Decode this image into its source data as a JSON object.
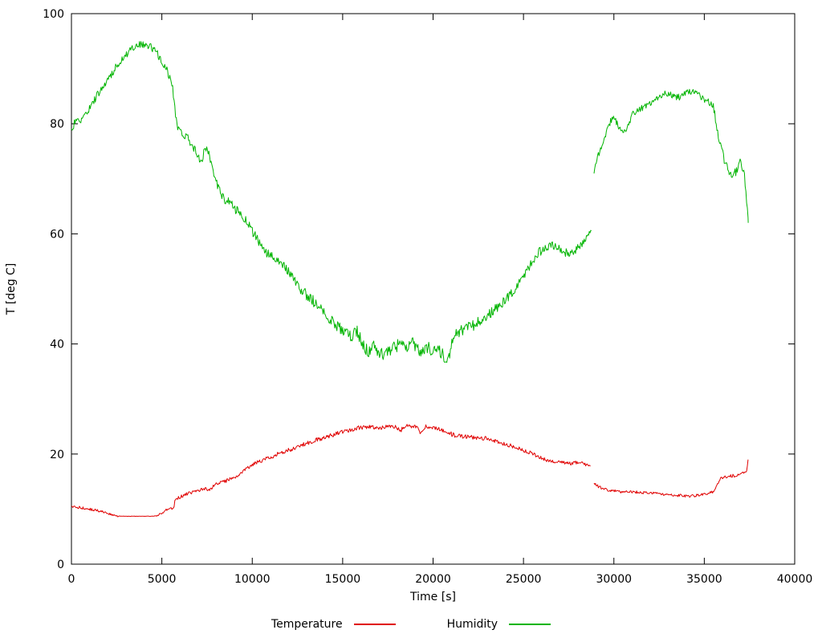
{
  "chart_data": {
    "type": "line",
    "title": "",
    "xlabel": "Time [s]",
    "ylabel": "T [deg C]",
    "xlim": [
      0,
      40000
    ],
    "ylim": [
      0,
      100
    ],
    "xticks": [
      0,
      5000,
      10000,
      15000,
      20000,
      25000,
      30000,
      35000,
      40000
    ],
    "yticks": [
      0,
      20,
      40,
      60,
      80,
      100
    ],
    "grid": false,
    "legend_position": "bottom-center",
    "frame": {
      "stroke": "#000000",
      "tick_length": 8,
      "ticks_mirrored": true
    },
    "series": [
      {
        "name": "Temperature",
        "color": "#e00000",
        "noise_keys": [
          [
            0,
            0.25
          ],
          [
            2500,
            0.2
          ],
          [
            2700,
            0.03
          ],
          [
            4500,
            0.03
          ],
          [
            4800,
            0.25
          ],
          [
            6000,
            0.3
          ],
          [
            15000,
            0.4
          ],
          [
            20000,
            0.4
          ],
          [
            28700,
            0.3
          ],
          [
            28900,
            0.25
          ],
          [
            35000,
            0.25
          ],
          [
            37420,
            0.3
          ]
        ],
        "segments": [
          [
            [
              0,
              10.5
            ],
            [
              400,
              10.3
            ],
            [
              800,
              10.1
            ],
            [
              1200,
              9.9
            ],
            [
              1600,
              9.6
            ],
            [
              2000,
              9.2
            ],
            [
              2300,
              9.0
            ],
            [
              2600,
              8.7
            ],
            [
              4600,
              8.7
            ],
            [
              4900,
              9.2
            ],
            [
              5200,
              9.7
            ],
            [
              5500,
              10.1
            ],
            [
              5650,
              10.3
            ],
            [
              5750,
              11.7
            ],
            [
              5900,
              12.0
            ],
            [
              6200,
              12.5
            ],
            [
              6600,
              13.0
            ],
            [
              7000,
              13.4
            ],
            [
              7400,
              13.7
            ],
            [
              7600,
              13.4
            ],
            [
              7900,
              14.3
            ],
            [
              8200,
              14.8
            ],
            [
              8600,
              15.2
            ],
            [
              9000,
              15.8
            ],
            [
              9400,
              16.6
            ],
            [
              9800,
              17.6
            ],
            [
              10200,
              18.4
            ],
            [
              10600,
              18.9
            ],
            [
              11000,
              19.4
            ],
            [
              11400,
              20.0
            ],
            [
              11800,
              20.5
            ],
            [
              12300,
              21.0
            ],
            [
              12800,
              21.7
            ],
            [
              13300,
              22.3
            ],
            [
              13800,
              22.8
            ],
            [
              14300,
              23.3
            ],
            [
              14800,
              23.9
            ],
            [
              15300,
              24.2
            ],
            [
              15800,
              24.7
            ],
            [
              16300,
              25.0
            ],
            [
              16800,
              24.8
            ],
            [
              17300,
              24.9
            ],
            [
              17800,
              25.1
            ],
            [
              18200,
              24.3
            ],
            [
              18500,
              25.0
            ],
            [
              19000,
              25.2
            ],
            [
              19300,
              24.0
            ],
            [
              19600,
              25.0
            ],
            [
              20000,
              24.8
            ],
            [
              20400,
              24.4
            ],
            [
              20800,
              23.9
            ],
            [
              21200,
              23.4
            ],
            [
              21600,
              23.2
            ],
            [
              22000,
              23.1
            ],
            [
              22500,
              23.0
            ],
            [
              23000,
              22.8
            ],
            [
              23500,
              22.3
            ],
            [
              24000,
              21.8
            ],
            [
              24500,
              21.3
            ],
            [
              25000,
              20.7
            ],
            [
              25400,
              20.2
            ],
            [
              25800,
              19.6
            ],
            [
              26100,
              19.1
            ],
            [
              26400,
              18.7
            ],
            [
              26800,
              18.5
            ],
            [
              27200,
              18.4
            ],
            [
              27600,
              18.3
            ],
            [
              28000,
              18.5
            ],
            [
              28400,
              18.2
            ],
            [
              28700,
              17.8
            ]
          ],
          [
            [
              28900,
              14.6
            ],
            [
              29200,
              14.0
            ],
            [
              29600,
              13.5
            ],
            [
              30000,
              13.3
            ],
            [
              30400,
              13.1
            ],
            [
              30800,
              13.2
            ],
            [
              31200,
              13.1
            ],
            [
              31600,
              13.0
            ],
            [
              32000,
              13.0
            ],
            [
              32400,
              12.8
            ],
            [
              32800,
              12.6
            ],
            [
              33200,
              12.5
            ],
            [
              33600,
              12.5
            ],
            [
              34000,
              12.4
            ],
            [
              34400,
              12.4
            ],
            [
              34800,
              12.6
            ],
            [
              35200,
              12.9
            ],
            [
              35500,
              13.2
            ],
            [
              35700,
              14.4
            ],
            [
              35900,
              15.5
            ],
            [
              36100,
              15.8
            ],
            [
              36400,
              16.0
            ],
            [
              36700,
              16.1
            ],
            [
              37000,
              16.3
            ],
            [
              37200,
              16.6
            ],
            [
              37350,
              17.2
            ],
            [
              37420,
              19.0
            ]
          ]
        ]
      },
      {
        "name": "Humidity",
        "color": "#00b400",
        "noise_keys": [
          [
            0,
            0.7
          ],
          [
            5000,
            0.7
          ],
          [
            10000,
            0.9
          ],
          [
            15000,
            1.1
          ],
          [
            21000,
            1.1
          ],
          [
            26000,
            0.8
          ],
          [
            28750,
            0.7
          ],
          [
            28900,
            0.6
          ],
          [
            34000,
            0.6
          ],
          [
            36000,
            0.9
          ],
          [
            37430,
            0.7
          ]
        ],
        "segments": [
          [
            [
              0,
              78.5
            ],
            [
              150,
              80.0
            ],
            [
              400,
              80.5
            ],
            [
              700,
              81.0
            ],
            [
              1000,
              83.0
            ],
            [
              1300,
              84.5
            ],
            [
              1700,
              86.5
            ],
            [
              2100,
              88.5
            ],
            [
              2500,
              90.5
            ],
            [
              2900,
              92.0
            ],
            [
              3300,
              93.5
            ],
            [
              3700,
              94.3
            ],
            [
              4100,
              94.5
            ],
            [
              4400,
              94.0
            ],
            [
              4700,
              93.0
            ],
            [
              5000,
              91.5
            ],
            [
              5300,
              89.5
            ],
            [
              5600,
              86.5
            ],
            [
              5750,
              82.0
            ],
            [
              5900,
              79.0
            ],
            [
              6100,
              78.5
            ],
            [
              6400,
              77.5
            ],
            [
              6700,
              76.0
            ],
            [
              7000,
              74.0
            ],
            [
              7200,
              73.5
            ],
            [
              7400,
              75.5
            ],
            [
              7600,
              74.5
            ],
            [
              7800,
              71.5
            ],
            [
              8100,
              68.5
            ],
            [
              8400,
              66.5
            ],
            [
              8800,
              65.5
            ],
            [
              9200,
              64.0
            ],
            [
              9600,
              62.5
            ],
            [
              10000,
              60.5
            ],
            [
              10400,
              58.5
            ],
            [
              10800,
              56.5
            ],
            [
              11200,
              55.5
            ],
            [
              11600,
              54.5
            ],
            [
              12000,
              53.0
            ],
            [
              12400,
              51.5
            ],
            [
              12800,
              49.5
            ],
            [
              13200,
              48.5
            ],
            [
              13600,
              47.0
            ],
            [
              14000,
              45.5
            ],
            [
              14400,
              44.0
            ],
            [
              14800,
              43.0
            ],
            [
              15200,
              42.0
            ],
            [
              15500,
              41.5
            ],
            [
              15800,
              42.5
            ],
            [
              16100,
              40.0
            ],
            [
              16400,
              38.5
            ],
            [
              16700,
              39.5
            ],
            [
              17000,
              38.5
            ],
            [
              17300,
              38.0
            ],
            [
              17600,
              38.5
            ],
            [
              17900,
              39.5
            ],
            [
              18200,
              40.0
            ],
            [
              18500,
              39.5
            ],
            [
              18800,
              40.5
            ],
            [
              19100,
              39.0
            ],
            [
              19400,
              38.5
            ],
            [
              19700,
              39.5
            ],
            [
              20000,
              38.5
            ],
            [
              20300,
              39.0
            ],
            [
              20600,
              37.8
            ],
            [
              20800,
              37.0
            ],
            [
              21000,
              39.5
            ],
            [
              21200,
              41.5
            ],
            [
              21500,
              42.3
            ],
            [
              22000,
              43.0
            ],
            [
              22500,
              44.0
            ],
            [
              23000,
              45.0
            ],
            [
              23500,
              46.5
            ],
            [
              24000,
              48.0
            ],
            [
              24500,
              50.0
            ],
            [
              24900,
              52.0
            ],
            [
              25200,
              53.5
            ],
            [
              25600,
              55.5
            ],
            [
              25900,
              56.8
            ],
            [
              26200,
              57.3
            ],
            [
              26600,
              57.8
            ],
            [
              27000,
              57.5
            ],
            [
              27300,
              56.6
            ],
            [
              27700,
              56.6
            ],
            [
              28000,
              57.5
            ],
            [
              28300,
              58.5
            ],
            [
              28600,
              59.5
            ],
            [
              28750,
              60.5
            ]
          ],
          [
            [
              28900,
              71.0
            ],
            [
              29100,
              74.0
            ],
            [
              29400,
              77.0
            ],
            [
              29700,
              79.5
            ],
            [
              29900,
              81.0
            ],
            [
              30100,
              80.5
            ],
            [
              30400,
              78.5
            ],
            [
              30700,
              79.0
            ],
            [
              31000,
              81.5
            ],
            [
              31300,
              82.5
            ],
            [
              31700,
              83.0
            ],
            [
              32100,
              83.8
            ],
            [
              32500,
              85.0
            ],
            [
              32900,
              85.5
            ],
            [
              33300,
              85.0
            ],
            [
              33700,
              84.8
            ],
            [
              34100,
              85.8
            ],
            [
              34400,
              85.8
            ],
            [
              34700,
              85.0
            ],
            [
              35000,
              84.3
            ],
            [
              35300,
              84.0
            ],
            [
              35500,
              83.5
            ],
            [
              35650,
              80.0
            ],
            [
              35900,
              76.0
            ],
            [
              36200,
              72.5
            ],
            [
              36500,
              70.5
            ],
            [
              36800,
              71.5
            ],
            [
              37000,
              73.0
            ],
            [
              37200,
              71.5
            ],
            [
              37320,
              67.0
            ],
            [
              37430,
              62.0
            ]
          ]
        ]
      }
    ]
  }
}
